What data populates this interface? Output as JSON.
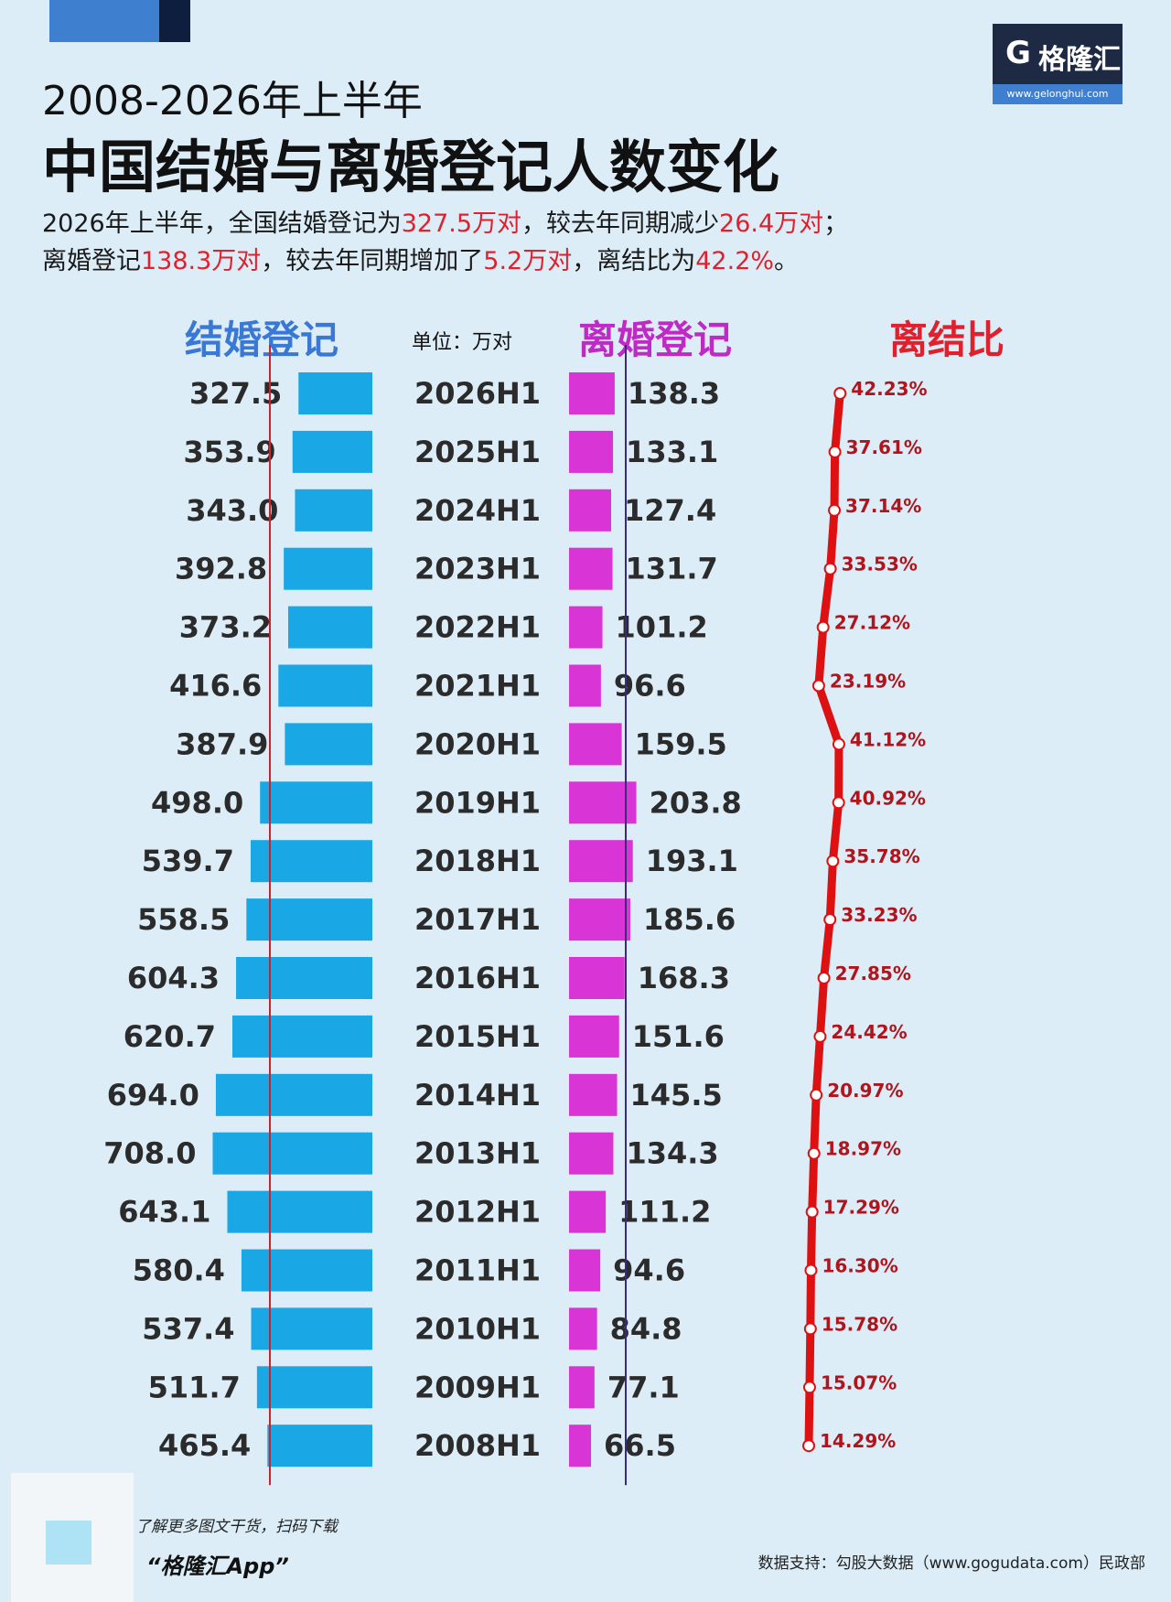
{
  "logo": {
    "mark": "G",
    "name": "格隆汇",
    "url": "www.gelonghui.com"
  },
  "title_line1": "2008-2026年上半年",
  "title_line2": "中国结婚与离婚登记人数变化",
  "summary": {
    "l1_a": "2026年上半年，全国结婚登记为",
    "l1_b": "327.5万对",
    "l1_c": "，较去年同期减少",
    "l1_d": "26.4万对",
    "l1_e": "；",
    "l2_a": "离婚登记",
    "l2_b": "138.3万对",
    "l2_c": "，较去年同期增加了",
    "l2_d": "5.2万对",
    "l2_e": "，离结比为",
    "l2_f": "42.2%",
    "l2_g": "。"
  },
  "colors": {
    "marriage": "#1aa7e5",
    "divorce": "#d935d6",
    "ratio": "#dd1111",
    "highlight": "#e0202c"
  },
  "chart_data": {
    "type": "bar",
    "unit": "单位：万对",
    "categories": [
      "2026H1",
      "2025H1",
      "2024H1",
      "2023H1",
      "2022H1",
      "2021H1",
      "2020H1",
      "2019H1",
      "2018H1",
      "2017H1",
      "2016H1",
      "2015H1",
      "2014H1",
      "2013H1",
      "2012H1",
      "2011H1",
      "2010H1",
      "2009H1",
      "2008H1"
    ],
    "series": [
      {
        "name": "结婚登记",
        "values": [
          327.5,
          353.9,
          343.0,
          392.8,
          373.2,
          416.6,
          387.9,
          498.0,
          539.7,
          558.5,
          604.3,
          620.7,
          694.0,
          708.0,
          643.1,
          580.4,
          537.4,
          511.7,
          465.4
        ]
      },
      {
        "name": "离婚登记",
        "values": [
          138.3,
          133.1,
          127.4,
          131.7,
          101.2,
          96.6,
          159.5,
          203.8,
          193.1,
          185.6,
          168.3,
          151.6,
          145.5,
          134.3,
          111.2,
          94.6,
          84.8,
          77.1,
          66.5
        ]
      },
      {
        "name": "离结比",
        "type": "line",
        "values": [
          42.23,
          37.61,
          37.14,
          33.53,
          27.12,
          23.19,
          41.12,
          40.92,
          35.78,
          33.23,
          27.85,
          24.42,
          20.97,
          18.97,
          17.29,
          16.3,
          15.78,
          15.07,
          14.29
        ]
      }
    ],
    "marriage_labels": [
      "327.5",
      "353.9",
      "343.0",
      "392.8",
      "373.2",
      "416.6",
      "387.9",
      "498.0",
      "539.7",
      "558.5",
      "604.3",
      "620.7",
      "694.0",
      "708.0",
      "643.1",
      "580.4",
      "537.4",
      "511.7",
      "465.4"
    ],
    "divorce_labels": [
      "138.3",
      "133.1",
      "127.4",
      "131.7",
      "101.2",
      "96.6",
      "159.5",
      "203.8",
      "193.1",
      "185.6",
      "168.3",
      "151.6",
      "145.5",
      "134.3",
      "111.2",
      "94.6",
      "84.8",
      "77.1",
      "66.5"
    ],
    "ratio_labels": [
      "42.23%",
      "37.61%",
      "37.14%",
      "33.53%",
      "27.12%",
      "23.19%",
      "41.12%",
      "40.92%",
      "35.78%",
      "33.23%",
      "27.85%",
      "24.42%",
      "20.97%",
      "18.97%",
      "17.29%",
      "16.30%",
      "15.78%",
      "15.07%",
      "14.29%"
    ]
  },
  "footer": {
    "note": "了解更多图文干货，扫码下载",
    "app": "“格隆汇App”",
    "source": "数据支持：勾股大数据（www.gogudata.com）民政部"
  }
}
